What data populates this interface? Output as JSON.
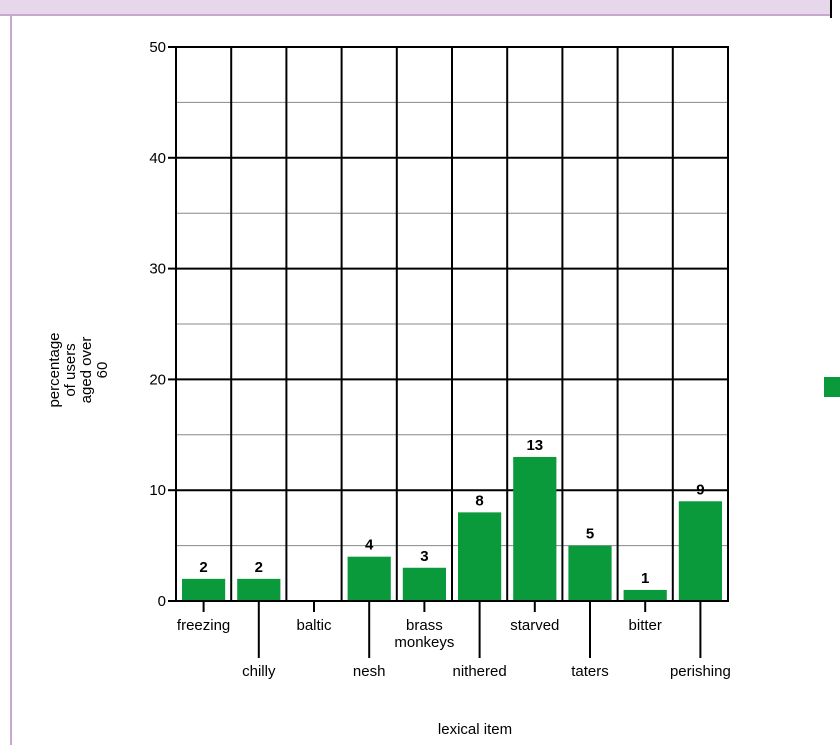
{
  "chart_data": {
    "type": "bar",
    "title": "",
    "xlabel": "lexical item",
    "ylabel": "percentage of users aged over 60",
    "ylabel_lines": [
      "percentage",
      "of users",
      "aged over",
      "60"
    ],
    "ylim": [
      0,
      50
    ],
    "yticks": [
      0,
      10,
      20,
      30,
      40,
      50
    ],
    "grid": true,
    "bar_color": "#0a9a3c",
    "categories": [
      "freezing",
      "chilly",
      "baltic",
      "nesh",
      "brass monkeys",
      "nithered",
      "starved",
      "taters",
      "bitter",
      "perishing"
    ],
    "category_lines": [
      [
        "freezing"
      ],
      [
        "chilly"
      ],
      [
        "baltic"
      ],
      [
        "nesh"
      ],
      [
        "brass",
        "monkeys"
      ],
      [
        "nithered"
      ],
      [
        "starved"
      ],
      [
        "taters"
      ],
      [
        "bitter"
      ],
      [
        "perishing"
      ]
    ],
    "values": [
      2,
      2,
      0,
      4,
      3,
      8,
      13,
      5,
      1,
      9
    ],
    "data_labels": [
      "2",
      "2",
      "",
      "4",
      "3",
      "8",
      "13",
      "5",
      "1",
      "9"
    ],
    "legend_marker_color": "#0a9a3c",
    "legend_position": "right"
  }
}
